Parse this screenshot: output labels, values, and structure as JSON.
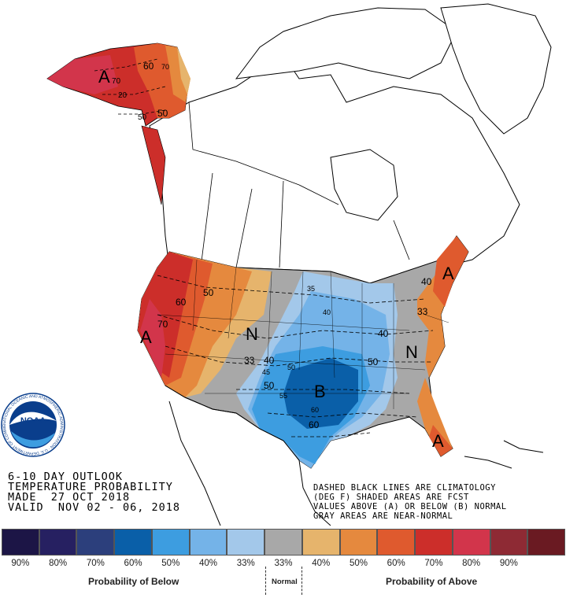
{
  "title": {
    "line1": "6-10 DAY OUTLOOK",
    "line2": "TEMPERATURE PROBABILITY",
    "line3": "MADE  27 OCT 2018",
    "line4": "VALID  NOV 02 - 06, 2018"
  },
  "notes": {
    "line1": "DASHED BLACK LINES ARE CLIMATOLOGY",
    "line2": "(DEG F) SHADED AREAS ARE FCST",
    "line3": "VALUES ABOVE (A) OR BELOW (B) NORMAL",
    "line4": "GRAY AREAS ARE NEAR-NORMAL"
  },
  "logo": {
    "text": "NOAA",
    "ring_text": "NATIONAL OCEANIC AND ATMOSPHERIC ADMINISTRATION · U.S. DEPARTMENT OF COMMERCE"
  },
  "map_labels": {
    "A_alaska": "A",
    "A_west": "A",
    "A_northeast": "A",
    "A_florida": "A",
    "N_plains": "N",
    "N_east": "N",
    "B_south": "B",
    "ak60": "60",
    "ak70": "70",
    "ak70b": "70",
    "ak20": "20",
    "ak50": "50",
    "ak50b": "50",
    "w60": "60",
    "w70": "70",
    "w50": "50",
    "p33": "33",
    "p40": "40",
    "p45": "45",
    "p50": "50",
    "p50b": "50",
    "p55": "55",
    "m35": "35",
    "m40": "40",
    "m40b": "40",
    "m50": "50",
    "s60": "60",
    "s60b": "60",
    "ne40": "40",
    "ne33": "33"
  },
  "legend": {
    "colors": [
      "#1c1546",
      "#262061",
      "#2c3f7c",
      "#0a5fa8",
      "#3d9de0",
      "#74b3e8",
      "#a3c8ea",
      "#a8a8a8",
      "#e6b46c",
      "#e5893e",
      "#df5a2e",
      "#cc2e2a",
      "#d2354b",
      "#8e2a34",
      "#6a1a22"
    ],
    "labels": [
      "90%",
      "80%",
      "70%",
      "60%",
      "50%",
      "40%",
      "33%",
      "33%",
      "40%",
      "50%",
      "60%",
      "70%",
      "80%",
      "90%"
    ],
    "below_caption": "Probability of Below",
    "normal_caption": "Normal",
    "above_caption": "Probability of Above"
  }
}
